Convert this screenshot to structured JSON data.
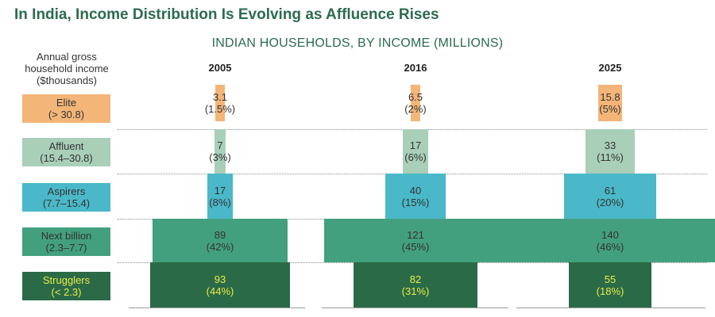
{
  "title": "In India, Income Distribution Is Evolving as Affluence Rises",
  "subtitle": "INDIAN HOUSEHOLDS, BY INCOME (MILLIONS)",
  "y_header": [
    "Annual gross",
    "household income",
    "($thousands)"
  ],
  "categories": [
    {
      "name": "Elite",
      "range": "(> 30.8)",
      "color": "#f3b578",
      "text": "#333333"
    },
    {
      "name": "Affluent",
      "range": "(15.4–30.8)",
      "color": "#a9cfb9",
      "text": "#333333"
    },
    {
      "name": "Aspirers",
      "range": "(7.7–15.4)",
      "color": "#4ab8c8",
      "text": "#333333"
    },
    {
      "name": "Next billion",
      "range": "(2.3–7.7)",
      "color": "#43a07e",
      "text": "#333333"
    },
    {
      "name": "Strugglers",
      "range": "(< 2.3)",
      "color": "#2b6a47",
      "text": "#e9ec4a"
    }
  ],
  "chart_data": {
    "type": "bar",
    "title": "In India, Income Distribution Is Evolving as Affluence Rises",
    "subtitle": "INDIAN HOUSEHOLDS, BY INCOME (MILLIONS)",
    "ylabel": "Annual gross household income ($thousands)",
    "categories": [
      "Elite (> 30.8)",
      "Affluent (15.4–30.8)",
      "Aspirers (7.7–15.4)",
      "Next billion (2.3–7.7)",
      "Strugglers (< 2.3)"
    ],
    "series": [
      {
        "name": "2005",
        "values": [
          3.1,
          7,
          17,
          89,
          93
        ],
        "labels": [
          "3.1",
          "7",
          "17",
          "89",
          "93"
        ],
        "shares": [
          "(1.5%)",
          "(3%)",
          "(8%)",
          "(42%)",
          "(44%)"
        ]
      },
      {
        "name": "2016",
        "values": [
          6.5,
          17,
          40,
          121,
          82
        ],
        "labels": [
          "6.5",
          "17",
          "40",
          "121",
          "82"
        ],
        "shares": [
          "(2%)",
          "(6%)",
          "(15%)",
          "(45%)",
          "(31%)"
        ]
      },
      {
        "name": "2025",
        "values": [
          15.8,
          33,
          61,
          140,
          55
        ],
        "labels": [
          "15.8",
          "33",
          "61",
          "140",
          "55"
        ],
        "shares": [
          "(5%)",
          "(11%)",
          "(20%)",
          "(46%)",
          "(18%)"
        ]
      }
    ]
  }
}
